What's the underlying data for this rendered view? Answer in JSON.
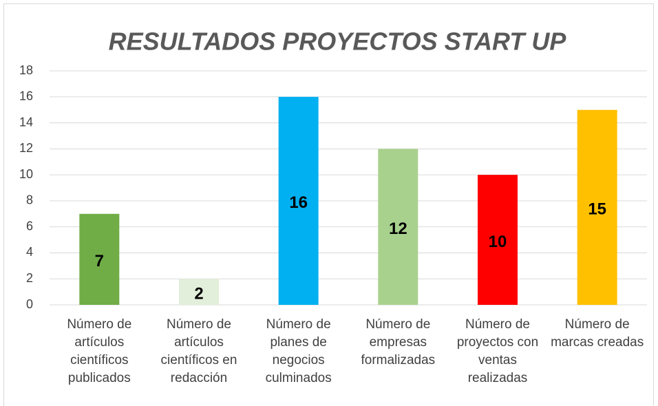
{
  "chart_data": {
    "type": "bar",
    "title": "RESULTADOS PROYECTOS START UP",
    "categories": [
      "Número de artículos científicos publicados",
      "Número de artículos científicos en redacción",
      "Número de planes de negocios culminados",
      "Número de empresas formalizadas",
      "Número de proyectos con ventas realizadas",
      "Número de marcas creadas"
    ],
    "values": [
      7,
      2,
      16,
      12,
      10,
      15
    ],
    "colors": [
      "#70ad47",
      "#e2efda",
      "#00b0f0",
      "#a9d18e",
      "#ff0000",
      "#ffc000"
    ],
    "ylim": [
      0,
      18
    ],
    "yticks": [
      0,
      2,
      4,
      6,
      8,
      10,
      12,
      14,
      16,
      18
    ],
    "grid": true
  }
}
